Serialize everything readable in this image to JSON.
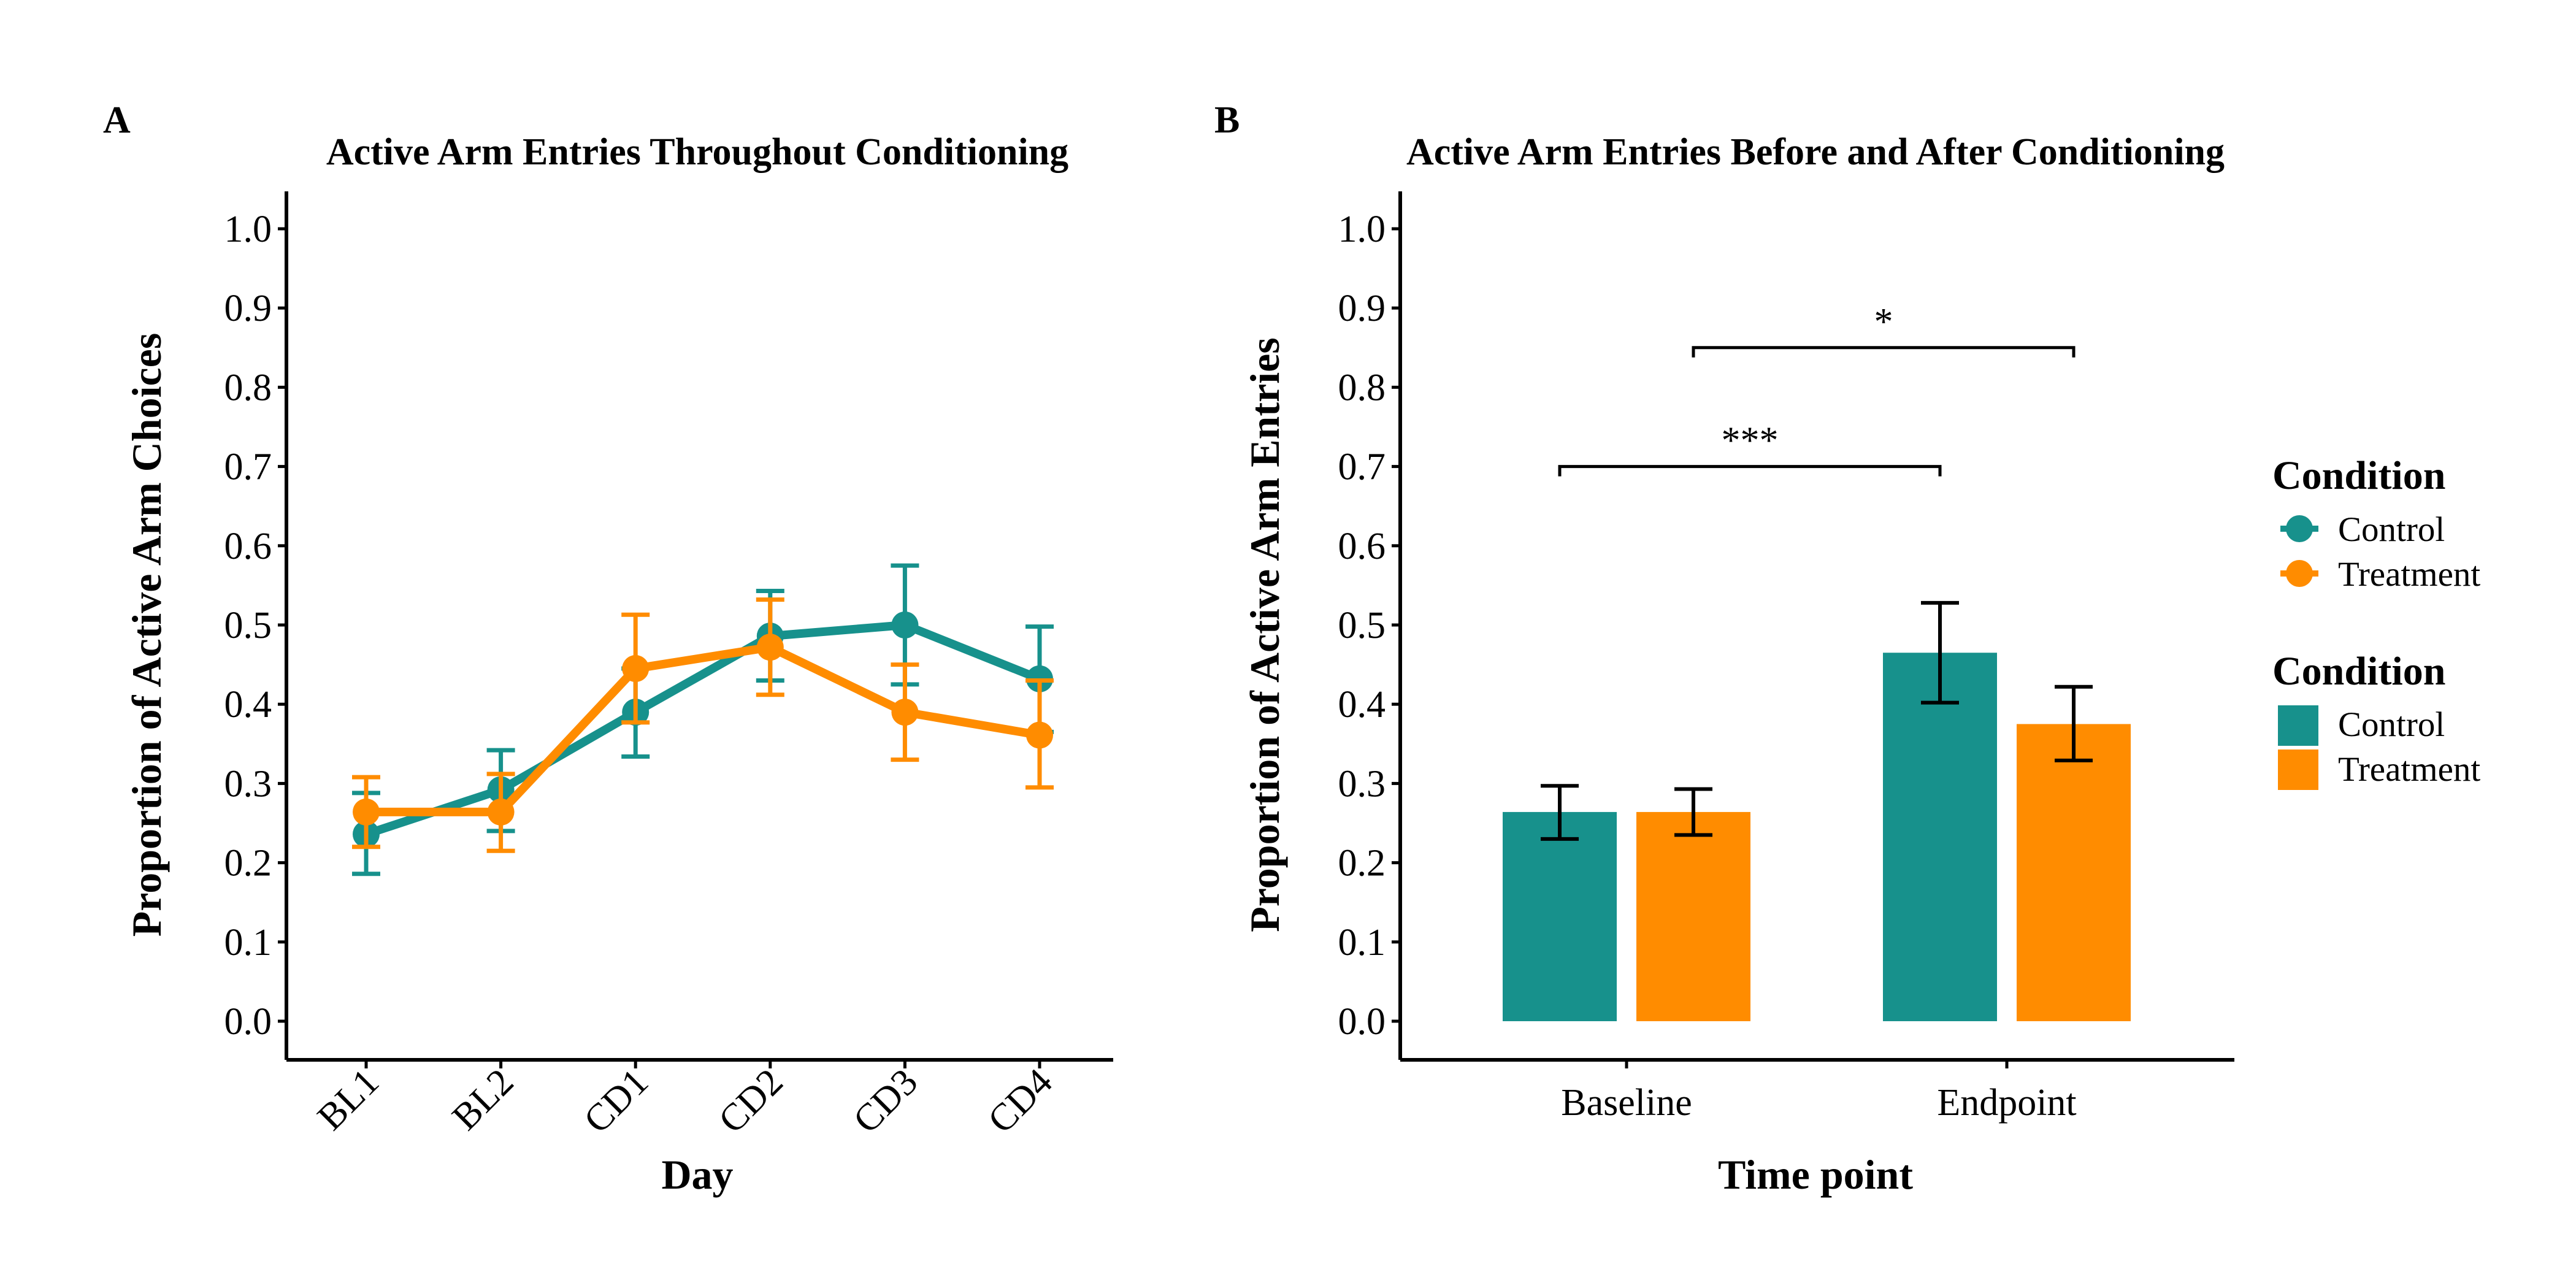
{
  "colors": {
    "control": "#17918c",
    "treatment": "#ff8c00",
    "axis": "#000000"
  },
  "chart_data": [
    {
      "panel": "A",
      "type": "line",
      "title": "Active Arm Entries Throughout Conditioning",
      "xlabel": "Day",
      "ylabel": "Proportion of Active Arm Choices",
      "categories": [
        "BL1",
        "BL2",
        "CD1",
        "CD2",
        "CD3",
        "CD4"
      ],
      "ylim": [
        0,
        1.0
      ],
      "yticks": [
        "0.0",
        "0.1",
        "0.2",
        "0.3",
        "0.4",
        "0.5",
        "0.6",
        "0.7",
        "0.8",
        "0.9",
        "1.0"
      ],
      "series": [
        {
          "name": "Control",
          "values": [
            0.236,
            0.292,
            0.39,
            0.486,
            0.5,
            0.432
          ],
          "err_low": [
            0.186,
            0.24,
            0.334,
            0.43,
            0.425,
            0.365
          ],
          "err_high": [
            0.288,
            0.342,
            0.445,
            0.543,
            0.575,
            0.498
          ]
        },
        {
          "name": "Treatment",
          "values": [
            0.264,
            0.264,
            0.445,
            0.472,
            0.39,
            0.361
          ],
          "err_low": [
            0.22,
            0.215,
            0.377,
            0.412,
            0.33,
            0.295
          ],
          "err_high": [
            0.308,
            0.312,
            0.513,
            0.532,
            0.45,
            0.43
          ]
        }
      ],
      "grid": false,
      "legend": "right"
    },
    {
      "panel": "B",
      "type": "bar",
      "title": "Active Arm Entries Before and After Conditioning",
      "xlabel": "Time point",
      "ylabel": "Proportion of Active Arm Entries",
      "categories": [
        "Baseline",
        "Endpoint"
      ],
      "ylim": [
        0,
        1.0
      ],
      "yticks": [
        "0.0",
        "0.1",
        "0.2",
        "0.3",
        "0.4",
        "0.5",
        "0.6",
        "0.7",
        "0.8",
        "0.9",
        "1.0"
      ],
      "series": [
        {
          "name": "Control",
          "values": [
            0.264,
            0.465
          ],
          "err_low": [
            0.23,
            0.402
          ],
          "err_high": [
            0.297,
            0.528
          ]
        },
        {
          "name": "Treatment",
          "values": [
            0.264,
            0.375
          ],
          "err_low": [
            0.235,
            0.329
          ],
          "err_high": [
            0.293,
            0.422
          ]
        }
      ],
      "annotations": [
        {
          "label": "***",
          "from": "Baseline Control",
          "to": "Endpoint Control",
          "y": 0.7
        },
        {
          "label": "*",
          "from": "Baseline Treatment",
          "to": "Endpoint Treatment",
          "y": 0.85
        }
      ],
      "grid": false,
      "legend": "right"
    }
  ],
  "legend": {
    "line_title": "Condition",
    "line_items": [
      "Control",
      "Treatment"
    ],
    "bar_title": "Condition",
    "bar_items": [
      "Control",
      "Treatment"
    ]
  }
}
